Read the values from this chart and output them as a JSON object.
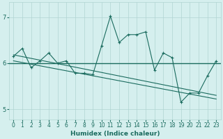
{
  "xlabel": "Humidex (Indice chaleur)",
  "bg_color": "#d5efee",
  "grid_color": "#b0d4d2",
  "line_color": "#1a6b5e",
  "x_data": [
    0,
    1,
    2,
    3,
    4,
    5,
    6,
    7,
    8,
    9,
    10,
    11,
    12,
    13,
    14,
    15,
    16,
    17,
    18,
    19,
    20,
    21,
    22,
    23
  ],
  "y_data": [
    6.15,
    6.32,
    5.9,
    6.05,
    6.22,
    6.0,
    6.05,
    5.78,
    5.78,
    5.75,
    6.38,
    7.02,
    6.45,
    6.62,
    6.62,
    6.68,
    5.85,
    6.22,
    6.12,
    5.15,
    5.35,
    5.35,
    5.72,
    6.05
  ],
  "hline_y": 6.0,
  "trend1_x": [
    0,
    23
  ],
  "trend1_y": [
    6.18,
    5.3
  ],
  "trend2_x": [
    0,
    23
  ],
  "trend2_y": [
    6.05,
    5.22
  ],
  "xlim": [
    -0.5,
    23.5
  ],
  "ylim": [
    4.78,
    7.32
  ],
  "yticks": [
    5,
    6,
    7
  ],
  "xticks": [
    0,
    1,
    2,
    3,
    4,
    5,
    6,
    7,
    8,
    9,
    10,
    11,
    12,
    13,
    14,
    15,
    16,
    17,
    18,
    19,
    20,
    21,
    22,
    23
  ],
  "tick_fontsize": 5.5,
  "label_fontsize": 6.5
}
